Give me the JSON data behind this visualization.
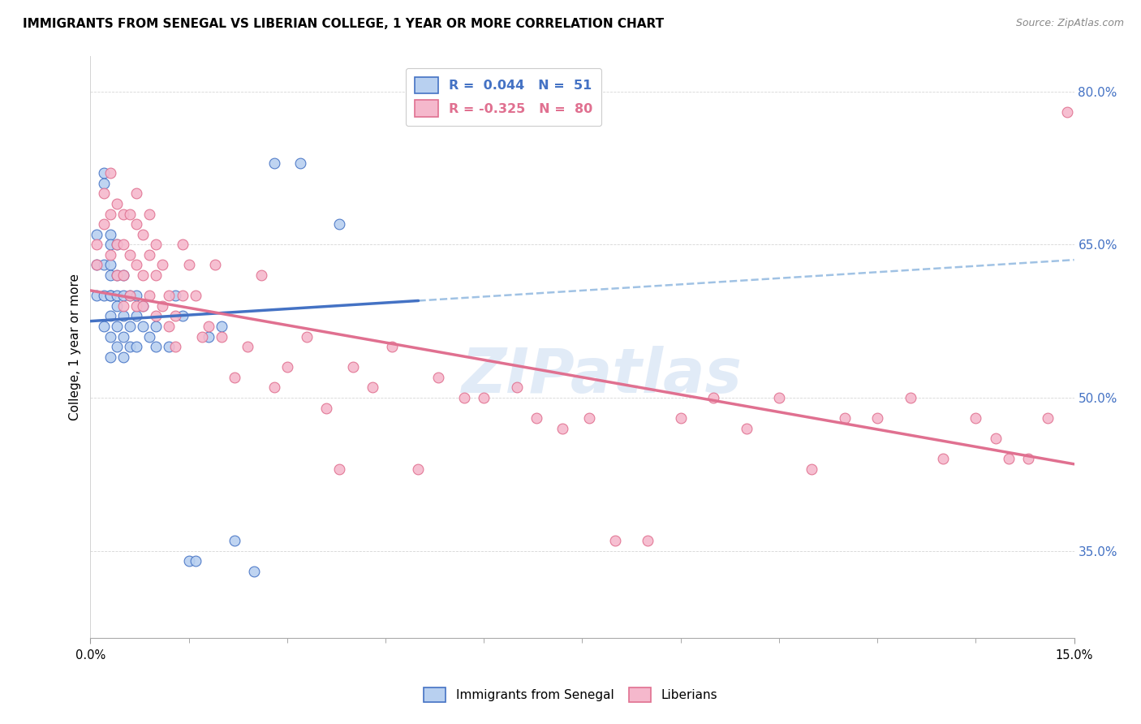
{
  "title": "IMMIGRANTS FROM SENEGAL VS LIBERIAN COLLEGE, 1 YEAR OR MORE CORRELATION CHART",
  "source": "Source: ZipAtlas.com",
  "ylabel": "College, 1 year or more",
  "ytick_values": [
    0.8,
    0.65,
    0.5,
    0.35
  ],
  "xmin": 0.0,
  "xmax": 0.15,
  "ymin": 0.265,
  "ymax": 0.835,
  "series1_color": "#b8d0f0",
  "series2_color": "#f5b8cc",
  "line1_color": "#4472c4",
  "line2_color": "#e07090",
  "dashed_color": "#90b8e0",
  "ytick_color": "#4472c4",
  "watermark": "ZIPatlas",
  "line1_x0": 0.0,
  "line1_y0": 0.575,
  "line1_x1": 0.05,
  "line1_y1": 0.595,
  "line1_xd": 0.15,
  "line1_yd": 0.635,
  "line2_x0": 0.0,
  "line2_y0": 0.605,
  "line2_x1": 0.15,
  "line2_y1": 0.435,
  "senegal_x": [
    0.001,
    0.001,
    0.001,
    0.002,
    0.002,
    0.002,
    0.002,
    0.002,
    0.003,
    0.003,
    0.003,
    0.003,
    0.003,
    0.003,
    0.003,
    0.003,
    0.003,
    0.004,
    0.004,
    0.004,
    0.004,
    0.004,
    0.004,
    0.005,
    0.005,
    0.005,
    0.005,
    0.005,
    0.006,
    0.006,
    0.006,
    0.007,
    0.007,
    0.007,
    0.008,
    0.008,
    0.009,
    0.01,
    0.01,
    0.012,
    0.013,
    0.014,
    0.015,
    0.016,
    0.018,
    0.02,
    0.022,
    0.025,
    0.028,
    0.032,
    0.038
  ],
  "senegal_y": [
    0.66,
    0.63,
    0.6,
    0.72,
    0.71,
    0.63,
    0.6,
    0.57,
    0.66,
    0.65,
    0.63,
    0.62,
    0.6,
    0.6,
    0.58,
    0.56,
    0.54,
    0.65,
    0.62,
    0.6,
    0.59,
    0.57,
    0.55,
    0.62,
    0.6,
    0.58,
    0.56,
    0.54,
    0.6,
    0.57,
    0.55,
    0.6,
    0.58,
    0.55,
    0.59,
    0.57,
    0.56,
    0.57,
    0.55,
    0.55,
    0.6,
    0.58,
    0.34,
    0.34,
    0.56,
    0.57,
    0.36,
    0.33,
    0.73,
    0.73,
    0.67
  ],
  "liberian_x": [
    0.001,
    0.001,
    0.002,
    0.002,
    0.003,
    0.003,
    0.003,
    0.004,
    0.004,
    0.004,
    0.005,
    0.005,
    0.005,
    0.005,
    0.006,
    0.006,
    0.006,
    0.007,
    0.007,
    0.007,
    0.007,
    0.008,
    0.008,
    0.008,
    0.009,
    0.009,
    0.009,
    0.01,
    0.01,
    0.01,
    0.011,
    0.011,
    0.012,
    0.012,
    0.013,
    0.013,
    0.014,
    0.014,
    0.015,
    0.016,
    0.017,
    0.018,
    0.019,
    0.02,
    0.022,
    0.024,
    0.026,
    0.028,
    0.03,
    0.033,
    0.036,
    0.038,
    0.04,
    0.043,
    0.046,
    0.05,
    0.053,
    0.057,
    0.06,
    0.065,
    0.068,
    0.072,
    0.076,
    0.08,
    0.085,
    0.09,
    0.095,
    0.1,
    0.105,
    0.11,
    0.115,
    0.12,
    0.125,
    0.13,
    0.135,
    0.138,
    0.14,
    0.143,
    0.146,
    0.149
  ],
  "liberian_y": [
    0.65,
    0.63,
    0.7,
    0.67,
    0.72,
    0.68,
    0.64,
    0.69,
    0.65,
    0.62,
    0.68,
    0.65,
    0.62,
    0.59,
    0.68,
    0.64,
    0.6,
    0.7,
    0.67,
    0.63,
    0.59,
    0.66,
    0.62,
    0.59,
    0.68,
    0.64,
    0.6,
    0.65,
    0.62,
    0.58,
    0.63,
    0.59,
    0.6,
    0.57,
    0.58,
    0.55,
    0.65,
    0.6,
    0.63,
    0.6,
    0.56,
    0.57,
    0.63,
    0.56,
    0.52,
    0.55,
    0.62,
    0.51,
    0.53,
    0.56,
    0.49,
    0.43,
    0.53,
    0.51,
    0.55,
    0.43,
    0.52,
    0.5,
    0.5,
    0.51,
    0.48,
    0.47,
    0.48,
    0.36,
    0.36,
    0.48,
    0.5,
    0.47,
    0.5,
    0.43,
    0.48,
    0.48,
    0.5,
    0.44,
    0.48,
    0.46,
    0.44,
    0.44,
    0.48,
    0.78
  ]
}
